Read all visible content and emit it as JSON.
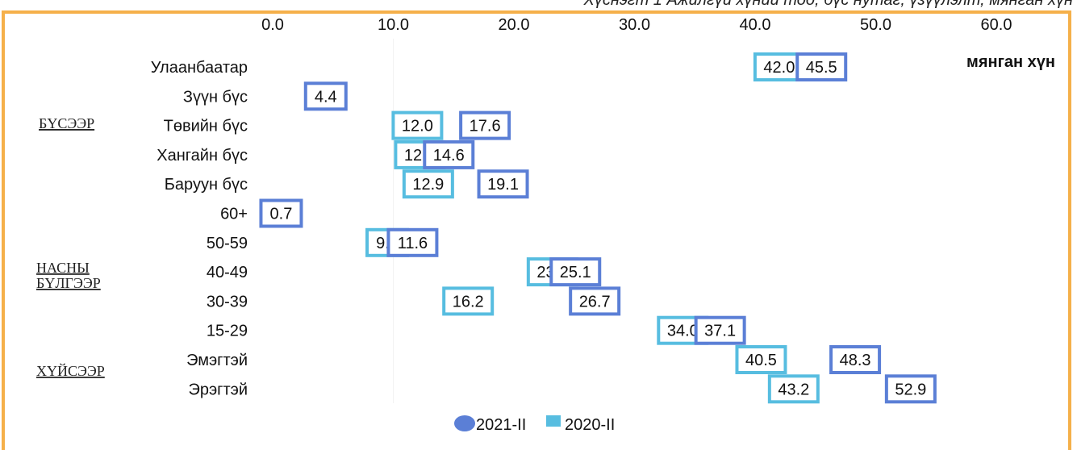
{
  "caption": "Хүснэгт 1 Ажилгүй хүний тоо, бүс нутаг, үзүүлэлт, мянган хүн",
  "chart_data": {
    "type": "dot",
    "unit_label": "мянган хүн",
    "xlim": [
      0,
      65
    ],
    "x_ticks": [
      "0.0",
      "10.0",
      "20.0",
      "30.0",
      "40.0",
      "50.0",
      "60.0"
    ],
    "categories": [
      "Улаанбаатар",
      "Зүүн бүс",
      "Төвийн бүс",
      "Хангайн бүс",
      "Баруун бүс",
      "60+",
      "50-59",
      "40-49",
      "30-39",
      "15-29",
      "Эмэгтэй",
      "Эрэгтэй"
    ],
    "groups": [
      {
        "label": "БҮСЭЭР"
      },
      {
        "label": "НАСНЫ БҮЛГЭЭР"
      },
      {
        "label": "ХҮЙСЭЭР"
      }
    ],
    "series": [
      {
        "name": "2021-II",
        "color": "#5b7fd6",
        "values": [
          45.5,
          4.4,
          17.6,
          14.6,
          19.1,
          0.7,
          11.6,
          25.1,
          26.7,
          37.1,
          48.3,
          52.9
        ]
      },
      {
        "name": "2020-II",
        "color": "#57bde0",
        "values": [
          42.0,
          null,
          12.0,
          12.2,
          12.9,
          null,
          9.5,
          23.2,
          16.2,
          34.0,
          40.5,
          43.2
        ]
      }
    ],
    "legend": "bottom"
  }
}
